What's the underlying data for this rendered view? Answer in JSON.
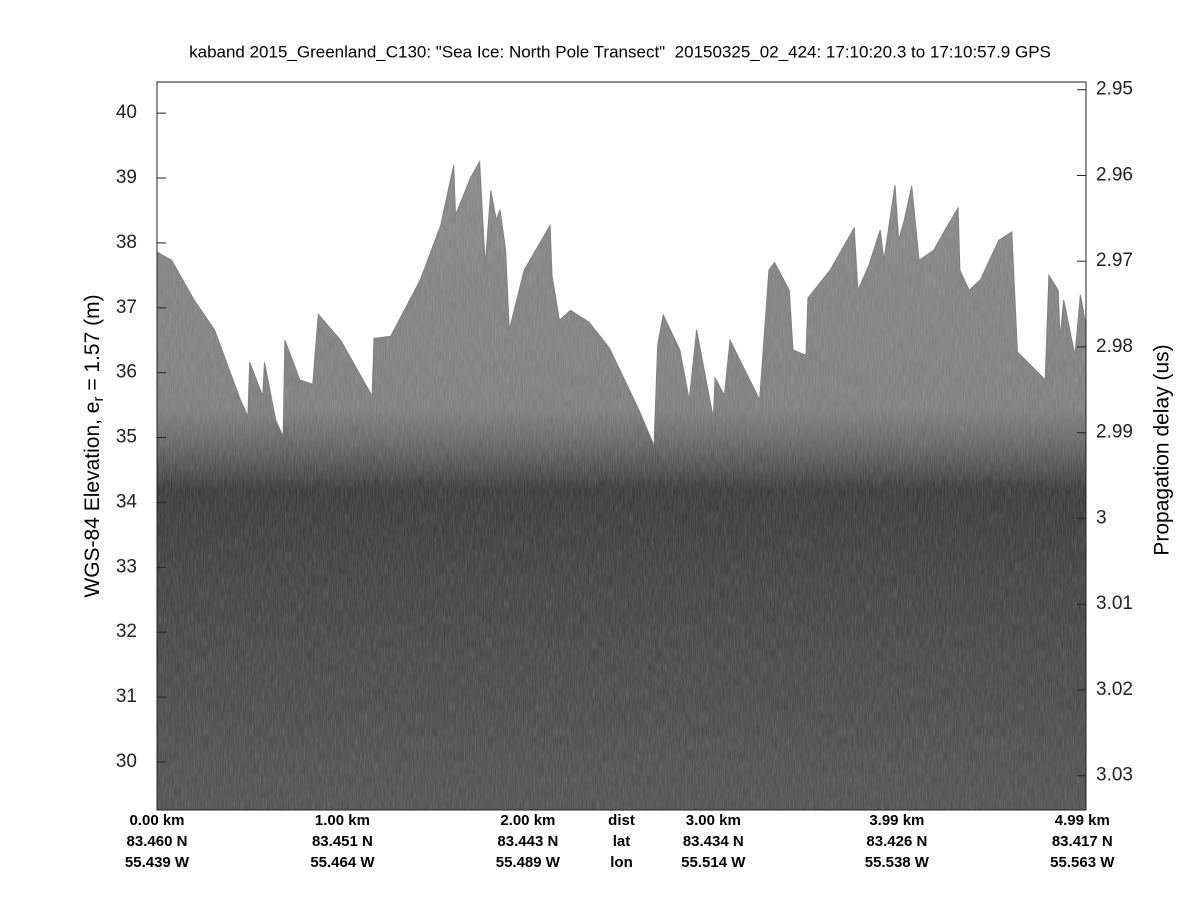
{
  "chart_data": {
    "type": "echogram",
    "title": "kaband 2015_Greenland_C130: \"Sea Ice: North Pole Transect\"  20150325_02_424: 17:10:20.3 to 17:10:57.9 GPS",
    "ylabel": {
      "text": "WGS-84 Elevation, e",
      "subscript": "r",
      "rest": " = 1.57 (m)"
    },
    "y2label": "Propagation delay (us)",
    "xlim": [
      0,
      5.01
    ],
    "xticks": [
      {
        "value": 0,
        "label": "0.00 km"
      },
      {
        "value": 1,
        "label": "1.00 km"
      },
      {
        "value": 2,
        "label": "2.00 km"
      },
      {
        "value": 3,
        "label": "3.00 km"
      },
      {
        "value": 3.99,
        "label": "3.99 km"
      },
      {
        "value": 4.99,
        "label": "4.99 km"
      }
    ],
    "lat_labels": [
      "83.460 N",
      "83.451 N",
      "83.443 N",
      "83.434 N",
      "83.426 N",
      "83.417 N"
    ],
    "lon_labels": [
      "55.439 W",
      "55.464 W",
      "55.489 W",
      "55.514 W",
      "55.538 W",
      "55.563 W"
    ],
    "row_labels": [
      "dist",
      "lat",
      "lon"
    ],
    "ylim": [
      29.26,
      40.48
    ],
    "yticks": [
      30,
      31,
      32,
      33,
      34,
      35,
      36,
      37,
      38,
      39,
      40
    ],
    "y2lim": [
      2.9491,
      3.034
    ],
    "y2ticks": [
      2.95,
      2.96,
      2.97,
      2.98,
      2.99,
      3,
      3.01,
      3.02,
      3.03
    ],
    "y2_reversed": true,
    "series": [
      {
        "color": "#808080",
        "x": [
          0,
          0.08,
          0.2,
          0.31,
          0.45,
          0.49,
          0.5,
          0.57,
          0.58,
          0.64,
          0.68,
          0.69,
          0.77,
          0.84,
          0.85,
          0.87,
          0.99,
          1.16,
          1.17,
          1.26,
          1.42,
          1.53,
          1.6,
          1.61,
          1.63,
          1.69,
          1.74,
          1.77,
          1.8,
          1.83,
          1.85,
          1.88,
          1.9,
          1.98,
          2.12,
          2.13,
          2.17,
          2.23,
          2.33,
          2.44,
          2.6,
          2.68,
          2.7,
          2.73,
          2.82,
          2.87,
          2.91,
          3.0,
          3.01,
          3.06,
          3.09,
          3.25,
          3.3,
          3.33,
          3.41,
          3.43,
          3.5,
          3.51,
          3.63,
          3.76,
          3.78,
          3.84,
          3.9,
          3.92,
          3.98,
          4.0,
          4.03,
          4.07,
          4.11,
          4.19,
          4.25,
          4.32,
          4.33,
          4.38,
          4.44,
          4.54,
          4.61,
          4.64,
          4.71,
          4.79,
          4.81,
          4.86,
          4.87,
          4.89,
          4.95,
          4.98,
          5.01
        ],
        "values": [
          37.86,
          37.73,
          37.12,
          36.66,
          35.58,
          35.33,
          36.16,
          35.64,
          36.16,
          35.27,
          35.02,
          36.5,
          35.89,
          35.82,
          36.19,
          36.9,
          36.5,
          35.64,
          36.53,
          36.56,
          37.43,
          38.27,
          39.2,
          38.43,
          38.57,
          39.0,
          39.25,
          37.66,
          38.81,
          38.35,
          38.51,
          37.89,
          36.66,
          37.58,
          38.27,
          37.5,
          36.81,
          36.96,
          36.78,
          36.38,
          35.42,
          34.88,
          36.43,
          36.89,
          36.35,
          35.58,
          36.66,
          35.3,
          35.92,
          35.65,
          36.5,
          35.58,
          37.58,
          37.7,
          37.27,
          36.35,
          36.27,
          37.15,
          37.58,
          38.23,
          37.27,
          37.66,
          38.2,
          37.73,
          38.89,
          38.04,
          38.35,
          38.88,
          37.73,
          37.89,
          38.2,
          38.54,
          37.58,
          37.27,
          37.43,
          38.04,
          38.17,
          36.32,
          36.12,
          35.89,
          37.5,
          37.27,
          36.53,
          37.12,
          36.27,
          37.2,
          36.73
        ]
      }
    ]
  }
}
